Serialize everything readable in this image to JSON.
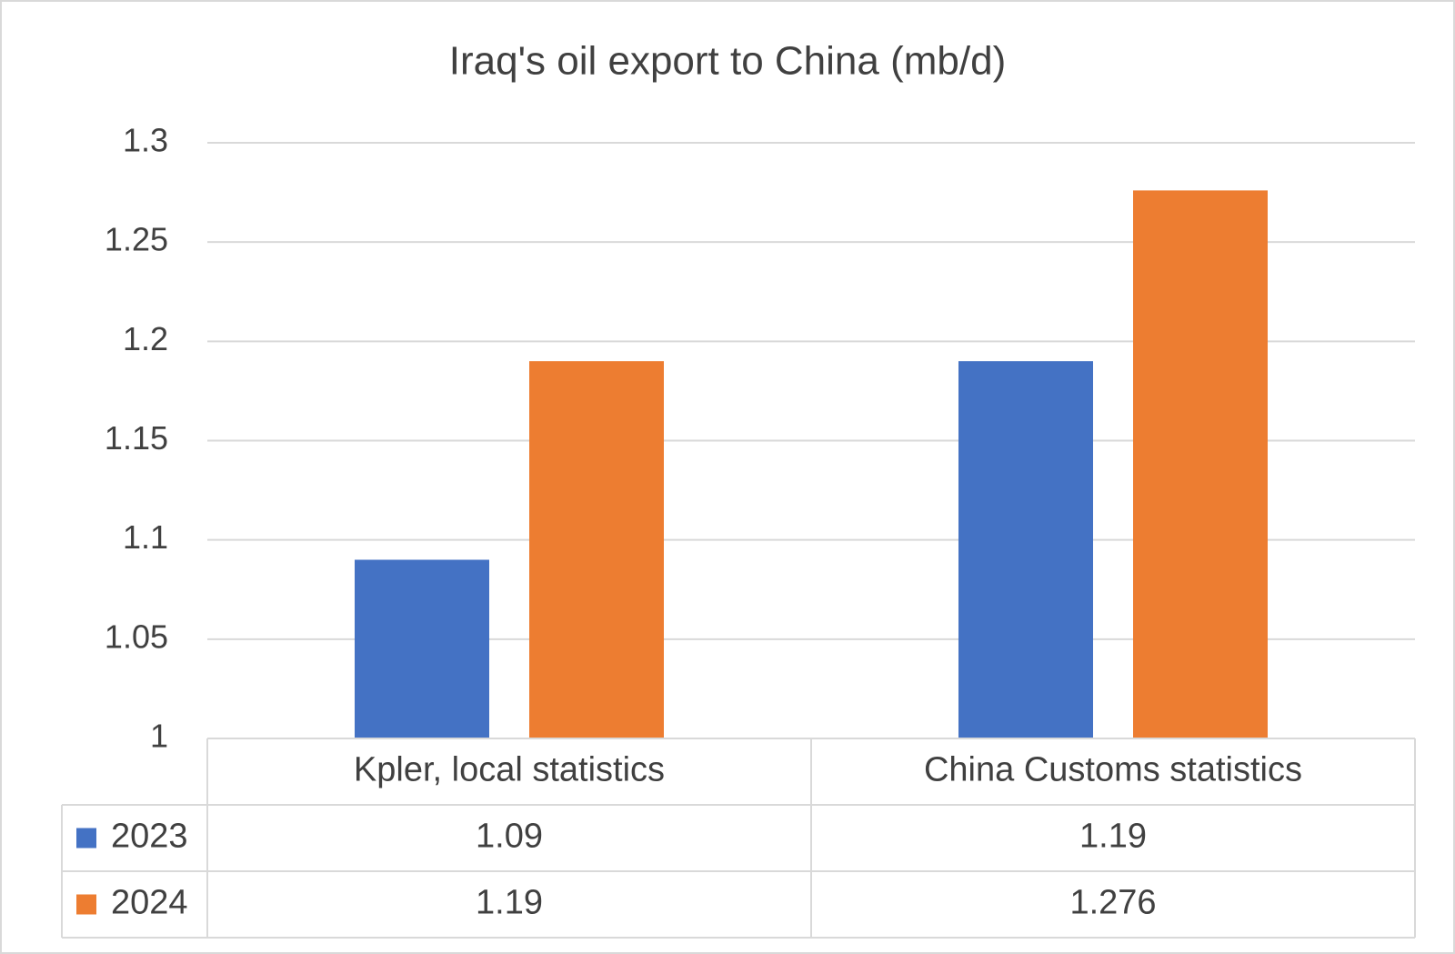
{
  "chart_data": {
    "type": "bar",
    "title": "Iraq's oil export to China (mb/d)",
    "categories": [
      "Kpler, local statistics",
      "China Customs statistics"
    ],
    "series": [
      {
        "name": "2023",
        "color": "#4472c4",
        "values": [
          1.09,
          1.19
        ]
      },
      {
        "name": "2024",
        "color": "#ed7d31",
        "values": [
          1.19,
          1.276
        ]
      }
    ],
    "ylim": [
      1,
      1.3
    ],
    "yticks": [
      1,
      1.05,
      1.1,
      1.15,
      1.2,
      1.25,
      1.3
    ],
    "grid": true,
    "data_table": true
  }
}
